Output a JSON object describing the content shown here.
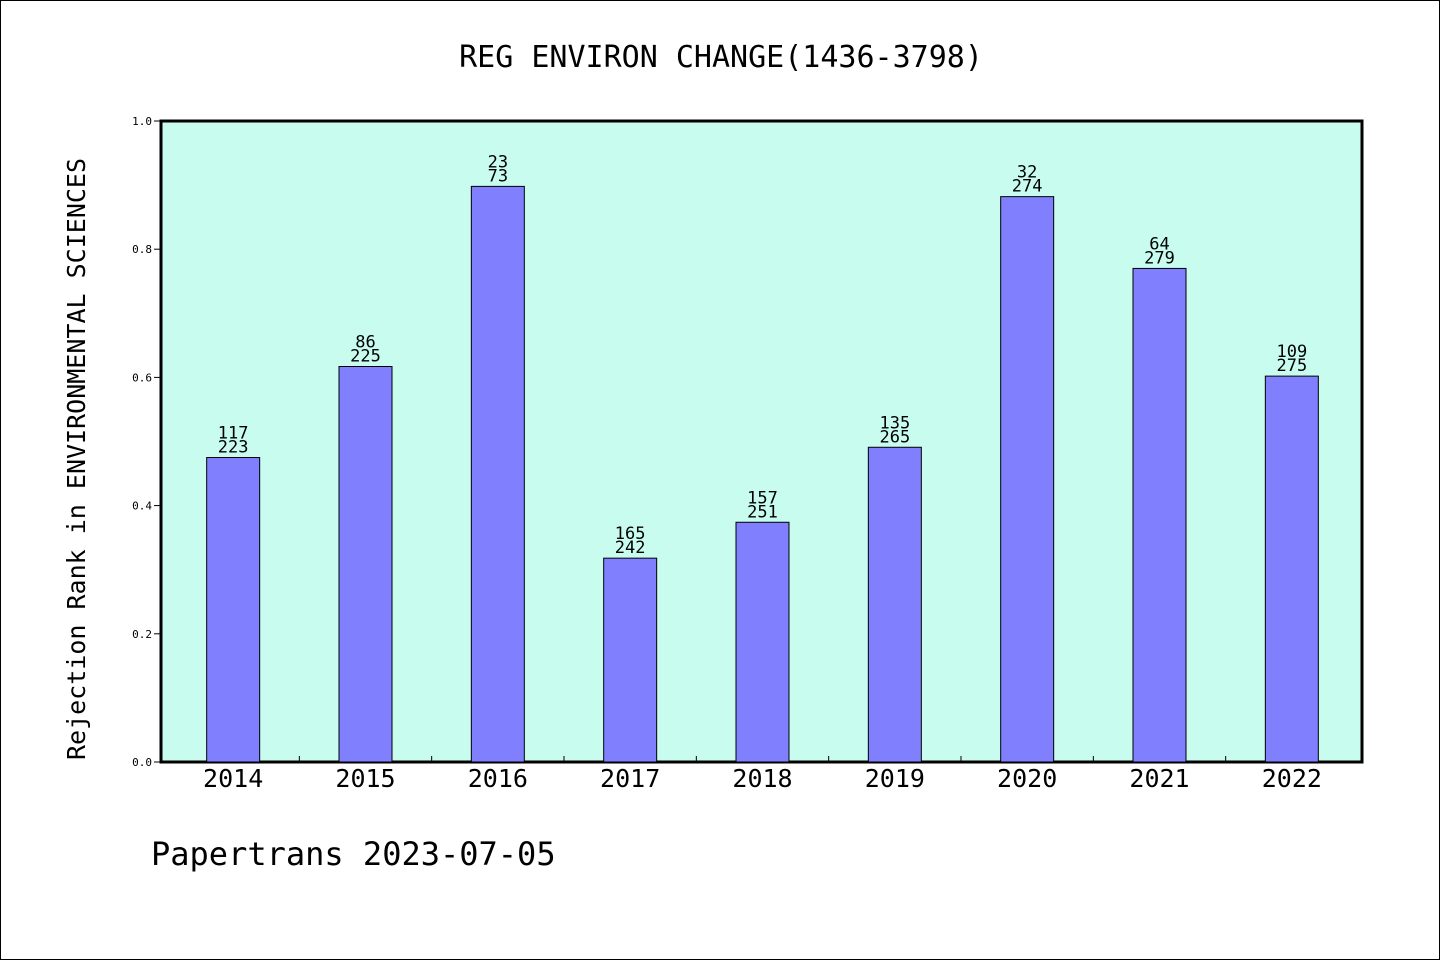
{
  "chart_data": {
    "type": "bar",
    "title": "REG ENVIRON CHANGE(1436-3798)",
    "ylabel": "Rejection Rank in ENVIRONMENTAL SCIENCES",
    "xlabel": "",
    "footer": "Papertrans 2023-07-05",
    "categories": [
      "2014",
      "2015",
      "2016",
      "2017",
      "2018",
      "2019",
      "2020",
      "2021",
      "2022"
    ],
    "values": [
      0.475,
      0.617,
      0.898,
      0.318,
      0.374,
      0.491,
      0.882,
      0.77,
      0.602
    ],
    "label_top": [
      "117",
      "86",
      "23",
      "165",
      "157",
      "135",
      "32",
      "64",
      "109"
    ],
    "label_bottom": [
      "223",
      "225",
      "73",
      "242",
      "251",
      "265",
      "274",
      "279",
      "275"
    ],
    "ylim": [
      0,
      1.0
    ],
    "yticks": [
      "0.0",
      "0.2",
      "0.4",
      "0.6",
      "0.8",
      "1.0"
    ],
    "grid": false,
    "colors": {
      "plot_background": "#c8fcee",
      "bar_fill": "#8080ff",
      "bar_stroke": "#000000",
      "axis": "#000000"
    }
  }
}
